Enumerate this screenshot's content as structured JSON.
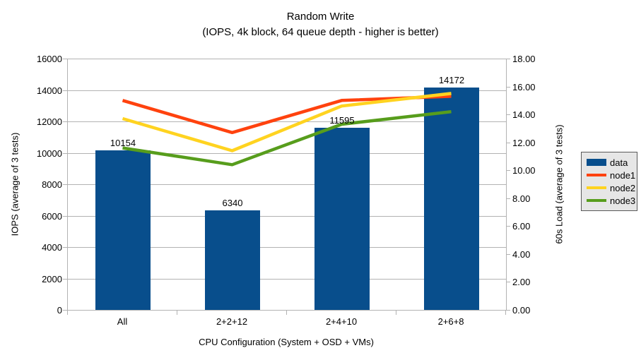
{
  "chart_data": {
    "type": "combo-bar-line",
    "title": "Random Write",
    "subtitle": "(IOPS, 4k block, 64 queue depth - higher is better)",
    "categories": [
      "All",
      "2+2+12",
      "2+4+10",
      "2+6+8"
    ],
    "bar_series": {
      "name": "data",
      "axis": "left",
      "values": [
        10154,
        6340,
        11595,
        14172
      ],
      "data_labels": [
        "10154",
        "6340",
        "11595",
        "14172"
      ],
      "color": "#084e8c"
    },
    "line_series": [
      {
        "name": "node1",
        "axis": "right",
        "values": [
          15.0,
          12.7,
          15.0,
          15.3
        ],
        "color": "#ff420e"
      },
      {
        "name": "node2",
        "axis": "right",
        "values": [
          13.7,
          11.4,
          14.6,
          15.5
        ],
        "color": "#ffd320"
      },
      {
        "name": "node3",
        "axis": "right",
        "values": [
          11.6,
          10.4,
          13.3,
          14.2
        ],
        "color": "#579d1c"
      }
    ],
    "left_axis": {
      "title": "IOPS (average of 3 tests)",
      "min": 0,
      "max": 16000,
      "step": 2000,
      "tick_labels": [
        "0",
        "2000",
        "4000",
        "6000",
        "8000",
        "10000",
        "12000",
        "14000",
        "16000"
      ]
    },
    "right_axis": {
      "title": "60s Load (average of 3 tests)",
      "min": 0,
      "max": 18,
      "step": 2,
      "tick_labels": [
        "0.00",
        "2.00",
        "4.00",
        "6.00",
        "8.00",
        "10.00",
        "12.00",
        "14.00",
        "16.00",
        "18.00"
      ]
    },
    "x_axis": {
      "title": "CPU Configuration (System + OSD + VMs)"
    },
    "legend": {
      "position": "right",
      "background": "#e6e6e6"
    },
    "grid": true,
    "grid_color": "#b2b2b2"
  }
}
